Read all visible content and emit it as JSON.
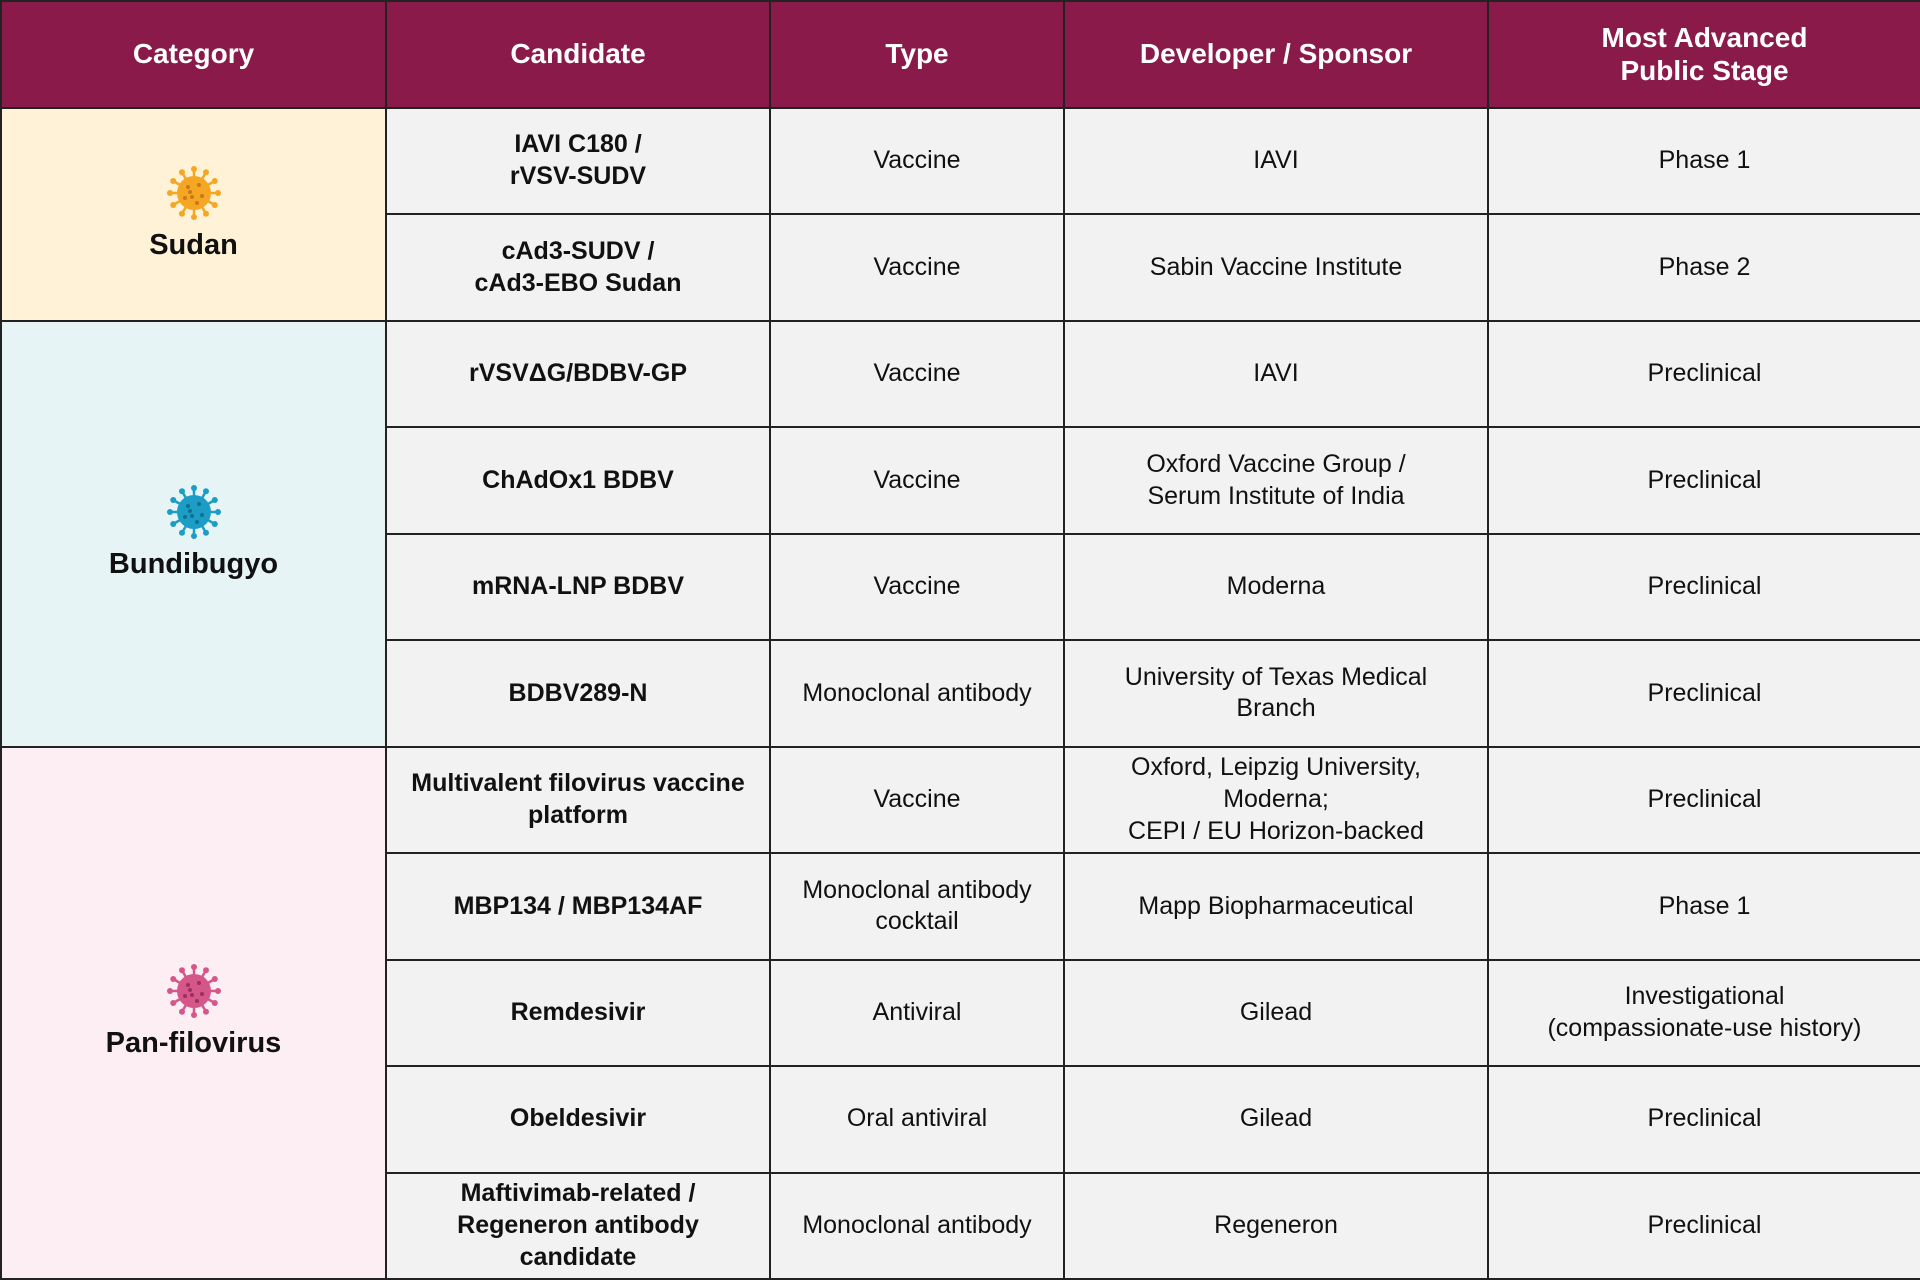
{
  "header": {
    "columns": [
      "Category",
      "Candidate",
      "Type",
      "Developer / Sponsor",
      "Most Advanced\nPublic Stage"
    ]
  },
  "groups": [
    {
      "category": "Sudan",
      "rows": [
        [
          "IAVI C180 /\nrVSV-SUDV",
          "Vaccine",
          "IAVI",
          "Phase 1"
        ],
        [
          "cAd3-SUDV /\ncAd3-EBO Sudan",
          "Vaccine",
          "Sabin Vaccine Institute",
          "Phase 2"
        ]
      ]
    },
    {
      "category": "Bundibugyo",
      "rows": [
        [
          "rVSVΔG/BDBV-GP",
          "Vaccine",
          "IAVI",
          "Preclinical"
        ],
        [
          "ChAdOx1 BDBV",
          "Vaccine",
          "Oxford Vaccine Group /\nSerum Institute of India",
          "Preclinical"
        ],
        [
          "mRNA-LNP BDBV",
          "Vaccine",
          "Moderna",
          "Preclinical"
        ],
        [
          "BDBV289-N",
          "Monoclonal antibody",
          "University of Texas Medical\nBranch",
          "Preclinical"
        ]
      ]
    },
    {
      "category": "Pan-filovirus",
      "rows": [
        [
          "Multivalent filovirus vaccine\nplatform",
          "Vaccine",
          "Oxford, Leipzig University,\nModerna;\nCEPI / EU Horizon-backed",
          "Preclinical"
        ],
        [
          "MBP134 / MBP134AF",
          "Monoclonal antibody\ncocktail",
          "Mapp Biopharmaceutical",
          "Phase 1"
        ],
        [
          "Remdesivir",
          "Antiviral",
          "Gilead",
          "Investigational\n(compassionate-use history)"
        ],
        [
          "Obeldesivir",
          "Oral antiviral",
          "Gilead",
          "Preclinical"
        ],
        [
          "Maftivimab-related /\nRegeneron antibody\ncandidate",
          "Monoclonal antibody",
          "Regeneron",
          "Preclinical"
        ]
      ]
    }
  ]
}
